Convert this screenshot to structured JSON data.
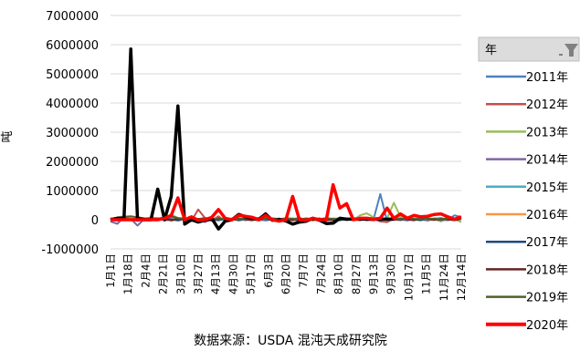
{
  "chart_data": {
    "type": "line",
    "ylabel": "吨",
    "ylim": [
      -1000000,
      7000000
    ],
    "yticks": [
      7000000,
      6000000,
      5000000,
      4000000,
      3000000,
      2000000,
      1000000,
      0,
      -1000000
    ],
    "grid": "horizontal",
    "legend_title": "年",
    "legend_position": "right",
    "source": "数据来源：USDA 混沌天成研究院",
    "x_labels": [
      "1月1日",
      "1月18日",
      "2月4日",
      "2月21日",
      "3月10日",
      "3月27日",
      "4月13日",
      "4月30日",
      "5月17日",
      "6月3日",
      "6月20日",
      "7月7日",
      "7月24日",
      "8月10日",
      "8月27日",
      "9月13日",
      "9月30日",
      "10月17日",
      "11月5日",
      "11月24日",
      "12月14日"
    ],
    "n_points": 53,
    "series": [
      {
        "name": "2011年",
        "color": "#4f81bd",
        "width": 2,
        "values": [
          50000,
          -20000,
          30000,
          60000,
          -40000,
          20000,
          50000,
          -10000,
          30000,
          80000,
          -30000,
          40000,
          20000,
          -20000,
          60000,
          10000,
          -10000,
          40000,
          30000,
          -30000,
          20000,
          50000,
          -20000,
          30000,
          10000,
          40000,
          -10000,
          20000,
          60000,
          -30000,
          30000,
          20000,
          -20000,
          40000,
          10000,
          -10000,
          30000,
          50000,
          -20000,
          20000,
          880000,
          -50000,
          100000,
          20000,
          -30000,
          40000,
          10000,
          -20000,
          30000,
          60000,
          -10000,
          150000,
          90000
        ]
      },
      {
        "name": "2012年",
        "color": "#c0504d",
        "width": 2,
        "values": [
          -30000,
          40000,
          20000,
          -20000,
          50000,
          30000,
          -10000,
          40000,
          60000,
          -30000,
          20000,
          50000,
          -40000,
          350000,
          60000,
          -30000,
          120000,
          -50000,
          30000,
          60000,
          -20000,
          40000,
          10000,
          -30000,
          50000,
          20000,
          -10000,
          40000,
          30000,
          -20000,
          10000,
          50000,
          -30000,
          20000,
          40000,
          -10000,
          30000,
          60000,
          -20000,
          40000,
          -60000,
          -80000,
          30000,
          50000,
          -20000,
          40000,
          20000,
          -30000,
          50000,
          10000,
          -20000,
          40000,
          30000
        ]
      },
      {
        "name": "2013年",
        "color": "#9bbb59",
        "width": 2,
        "values": [
          20000,
          80000,
          120000,
          90000,
          60000,
          30000,
          80000,
          50000,
          20000,
          180000,
          60000,
          -20000,
          40000,
          20000,
          60000,
          -10000,
          30000,
          50000,
          20000,
          -20000,
          40000,
          10000,
          -30000,
          60000,
          20000,
          40000,
          -20000,
          30000,
          10000,
          50000,
          -30000,
          20000,
          60000,
          -10000,
          40000,
          20000,
          -20000,
          150000,
          220000,
          80000,
          20000,
          50000,
          580000,
          100000,
          40000,
          20000,
          80000,
          40000,
          20000,
          -60000,
          40000,
          20000,
          -80000
        ]
      },
      {
        "name": "2014年",
        "color": "#8064a2",
        "width": 2,
        "values": [
          -60000,
          -140000,
          80000,
          30000,
          -200000,
          20000,
          50000,
          -20000,
          40000,
          60000,
          -30000,
          20000,
          -50000,
          30000,
          -80000,
          20000,
          60000,
          -30000,
          40000,
          20000,
          -10000,
          30000,
          50000,
          -20000,
          40000,
          10000,
          -30000,
          20000,
          60000,
          -10000,
          30000,
          20000,
          -20000,
          40000,
          10000,
          -10000,
          30000,
          50000,
          -20000,
          20000,
          10000,
          -10000,
          30000,
          20000,
          -20000,
          40000,
          10000,
          -10000,
          30000,
          20000,
          -10000,
          40000,
          20000
        ]
      },
      {
        "name": "2015年",
        "color": "#4bacc6",
        "width": 2,
        "values": [
          10000,
          30000,
          -20000,
          40000,
          20000,
          -10000,
          30000,
          60000,
          -30000,
          20000,
          50000,
          -10000,
          40000,
          20000,
          -20000,
          30000,
          10000,
          -20000,
          40000,
          30000,
          -10000,
          20000,
          50000,
          -30000,
          10000,
          40000,
          -20000,
          30000,
          20000,
          -10000,
          40000,
          10000,
          -20000,
          30000,
          50000,
          -10000,
          20000,
          40000,
          -20000,
          30000,
          10000,
          -10000,
          40000,
          20000,
          -20000,
          30000,
          10000,
          -10000,
          40000,
          20000,
          -10000,
          30000,
          20000
        ]
      },
      {
        "name": "2016年",
        "color": "#f79646",
        "width": 2,
        "values": [
          30000,
          -10000,
          20000,
          40000,
          -20000,
          10000,
          30000,
          -10000,
          40000,
          20000,
          -30000,
          10000,
          50000,
          -10000,
          20000,
          30000,
          -20000,
          40000,
          10000,
          -10000,
          30000,
          20000,
          -20000,
          40000,
          10000,
          -10000,
          30000,
          50000,
          -20000,
          20000,
          10000,
          -30000,
          40000,
          20000,
          -10000,
          30000,
          10000,
          -20000,
          40000,
          20000,
          -10000,
          30000,
          10000,
          -20000,
          40000,
          20000,
          -10000,
          30000,
          10000,
          -20000,
          40000,
          10000,
          20000
        ]
      },
      {
        "name": "2017年",
        "color": "#1f497d",
        "width": 2,
        "values": [
          20000,
          -20000,
          40000,
          10000,
          -30000,
          30000,
          20000,
          -10000,
          50000,
          10000,
          -20000,
          40000,
          20000,
          -30000,
          30000,
          10000,
          -20000,
          40000,
          20000,
          -10000,
          30000,
          10000,
          -20000,
          40000,
          20000,
          -10000,
          30000,
          10000,
          -30000,
          40000,
          20000,
          -10000,
          30000,
          10000,
          -20000,
          40000,
          20000,
          -10000,
          30000,
          10000,
          -20000,
          40000,
          20000,
          -10000,
          30000,
          10000,
          -20000,
          40000,
          20000,
          -10000,
          30000,
          10000,
          20000
        ]
      },
      {
        "name": "2018年",
        "color": "#632523",
        "width": 2,
        "values": [
          -10000,
          30000,
          10000,
          -20000,
          40000,
          20000,
          -10000,
          30000,
          10000,
          -20000,
          40000,
          20000,
          -10000,
          30000,
          10000,
          -30000,
          40000,
          20000,
          -10000,
          30000,
          10000,
          -20000,
          40000,
          20000,
          -10000,
          30000,
          10000,
          -20000,
          40000,
          20000,
          -10000,
          30000,
          10000,
          -20000,
          40000,
          20000,
          -10000,
          30000,
          10000,
          -20000,
          40000,
          20000,
          -10000,
          30000,
          10000,
          -20000,
          40000,
          20000,
          -10000,
          30000,
          10000,
          -20000,
          30000
        ]
      },
      {
        "name": "2019年",
        "color": "#4f6228",
        "width": 2,
        "values": [
          40000,
          60000,
          100000,
          120000,
          80000,
          50000,
          40000,
          30000,
          80000,
          120000,
          60000,
          40000,
          30000,
          20000,
          60000,
          30000,
          20000,
          40000,
          30000,
          20000,
          50000,
          30000,
          20000,
          40000,
          30000,
          20000,
          50000,
          30000,
          20000,
          40000,
          30000,
          20000,
          50000,
          30000,
          20000,
          40000,
          30000,
          20000,
          50000,
          30000,
          20000,
          40000,
          30000,
          20000,
          50000,
          30000,
          20000,
          40000,
          30000,
          20000,
          50000,
          30000,
          40000
        ]
      },
      {
        "name": "",
        "color": "#000000",
        "width": 3.5,
        "values": [
          0,
          50000,
          50000,
          5850000,
          50000,
          0,
          0,
          1050000,
          0,
          800000,
          3900000,
          -150000,
          0,
          -80000,
          -20000,
          50000,
          -320000,
          -50000,
          0,
          180000,
          100000,
          50000,
          20000,
          200000,
          -20000,
          0,
          -40000,
          -150000,
          -80000,
          -50000,
          50000,
          -20000,
          -130000,
          -120000,
          50000,
          20000,
          20000,
          20000,
          20000,
          20000,
          20000,
          20000,
          20000,
          null,
          null,
          null,
          null,
          null,
          null,
          null,
          null,
          null,
          null
        ]
      },
      {
        "name": "2020年",
        "color": "#ff0000",
        "width": 3.5,
        "values": [
          0,
          0,
          0,
          0,
          0,
          0,
          0,
          0,
          50000,
          150000,
          750000,
          0,
          100000,
          -20000,
          0,
          80000,
          350000,
          50000,
          0,
          150000,
          120000,
          80000,
          0,
          150000,
          0,
          -50000,
          0,
          800000,
          0,
          -20000,
          50000,
          0,
          0,
          1200000,
          400000,
          550000,
          0,
          50000,
          50000,
          20000,
          50000,
          400000,
          50000,
          200000,
          50000,
          150000,
          100000,
          120000,
          180000,
          200000,
          100000,
          20000,
          100000
        ]
      }
    ]
  }
}
